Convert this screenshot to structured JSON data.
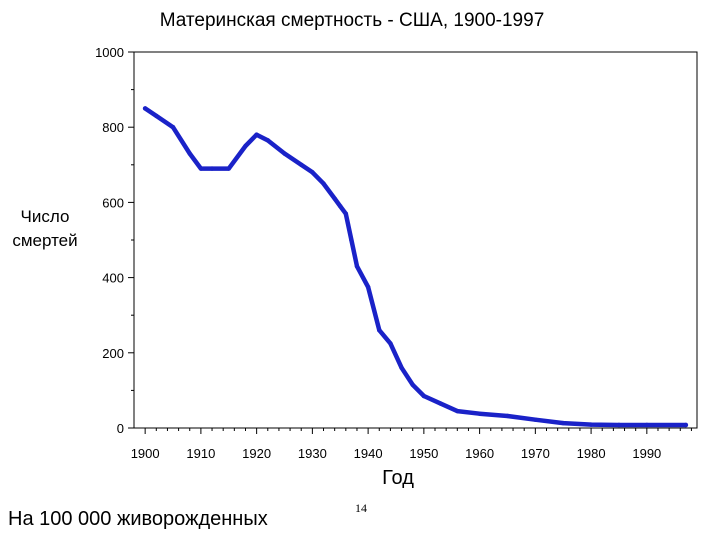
{
  "slide": {
    "footnote": "На 100 000 живорожденных",
    "page_number": "14"
  },
  "chart_data": {
    "type": "line",
    "title": "Материнская смертность - США, 1900-1997",
    "ylabel_lines": [
      "Число",
      "смертей"
    ],
    "xlabel": "Год",
    "xlim": [
      1898,
      1999
    ],
    "ylim": [
      0,
      1000
    ],
    "x_ticks": [
      1900,
      1910,
      1920,
      1930,
      1940,
      1950,
      1960,
      1970,
      1980,
      1990
    ],
    "y_ticks": [
      0,
      200,
      400,
      600,
      800,
      1000
    ],
    "grid": false,
    "line_color": "#1a22c8",
    "series": [
      {
        "x": [
          1900,
          1902,
          1905,
          1908,
          1910,
          1912,
          1915,
          1918,
          1920,
          1922,
          1925,
          1928,
          1930,
          1932,
          1934,
          1935,
          1936,
          1937,
          1938,
          1940,
          1942,
          1944,
          1946,
          1948,
          1950,
          1953,
          1956,
          1960,
          1965,
          1970,
          1975,
          1980,
          1985,
          1990,
          1997
        ],
        "y": [
          850,
          830,
          800,
          730,
          690,
          690,
          690,
          750,
          780,
          765,
          730,
          700,
          680,
          650,
          610,
          590,
          570,
          500,
          430,
          375,
          260,
          225,
          160,
          115,
          85,
          65,
          45,
          38,
          32,
          22,
          13,
          9,
          8,
          8,
          8
        ]
      }
    ]
  }
}
